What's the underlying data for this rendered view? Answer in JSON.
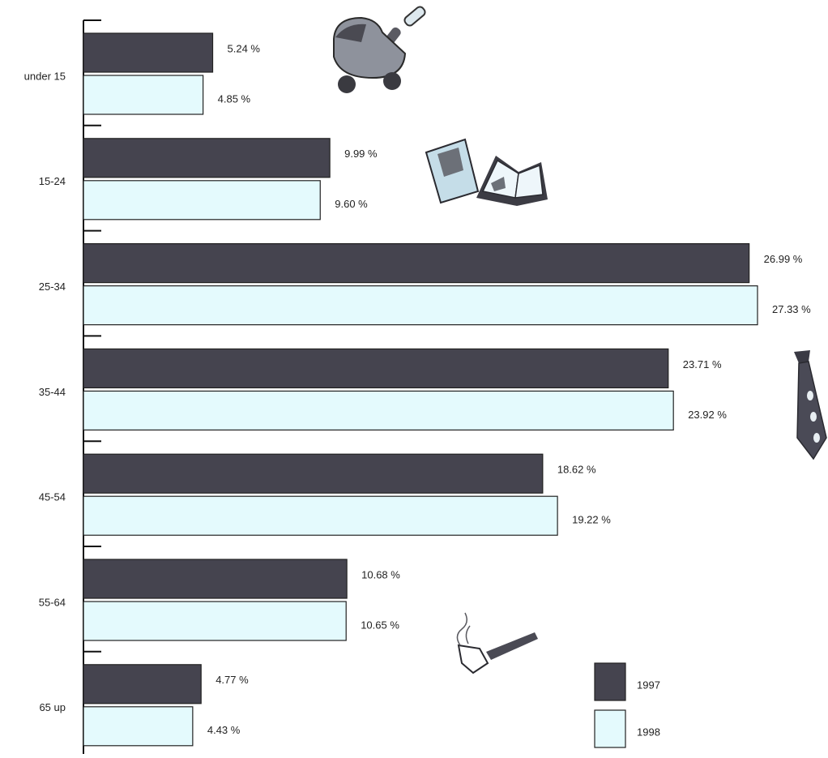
{
  "chart_data": {
    "type": "bar",
    "orientation": "horizontal",
    "categories": [
      "under 15",
      "15-24",
      "25-34",
      "35-44",
      "45-54",
      "55-64",
      "65 up"
    ],
    "series": [
      {
        "name": "1997",
        "color": "#45444f",
        "values": [
          5.24,
          9.99,
          26.99,
          23.71,
          18.62,
          10.68,
          4.77
        ],
        "labels": [
          "5.24 %",
          "9.99 %",
          "26.99 %",
          "23.71 %",
          "18.62 %",
          "10.68 %",
          "4.77 %"
        ]
      },
      {
        "name": "1998",
        "color": "#e4fafd",
        "values": [
          4.85,
          9.6,
          27.33,
          23.92,
          19.22,
          10.65,
          4.43
        ],
        "labels": [
          "4.85 %",
          "9.60 %",
          "27.33 %",
          "23.92 %",
          "19.22 %",
          "10.65 %",
          "4.43 %"
        ]
      }
    ],
    "title": "",
    "xlabel": "",
    "ylabel": "",
    "xlim": [
      0,
      27.33
    ],
    "grid": false,
    "legend": {
      "position": "bottom-right"
    },
    "decorations": [
      "stroller-icon",
      "books-icon",
      "necktie-icon",
      "pipe-icon"
    ]
  }
}
